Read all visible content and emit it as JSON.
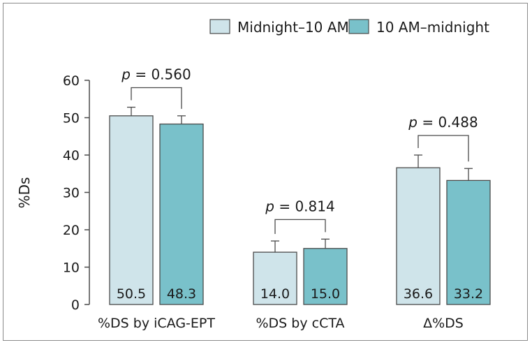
{
  "chart_data": {
    "type": "bar",
    "title": "",
    "xlabel": "",
    "ylabel": "%Ds",
    "ylim": [
      0,
      60
    ],
    "yticks": [
      0,
      10,
      20,
      30,
      40,
      50,
      60
    ],
    "grid": false,
    "legend_position": "top-right",
    "categories": [
      "%DS by iCAG-EPT",
      "%DS by cCTA",
      "Δ%DS"
    ],
    "series": [
      {
        "name": "Midnight–10 AM",
        "color": "#cfe4ea",
        "values": [
          50.5,
          14.0,
          36.6
        ],
        "labels": [
          "50.5",
          "14.0",
          "36.6"
        ],
        "errors": [
          2.3,
          3.0,
          3.4
        ]
      },
      {
        "name": "10 AM–midnight",
        "color": "#79c1ca",
        "values": [
          48.3,
          15.0,
          33.2
        ],
        "labels": [
          "48.3",
          "15.0",
          "33.2"
        ],
        "errors": [
          2.2,
          2.5,
          3.2
        ]
      }
    ],
    "pvalues": [
      {
        "prefix": "p",
        "text": " = 0.560"
      },
      {
        "prefix": "p",
        "text": " = 0.814"
      },
      {
        "prefix": "p",
        "text": " = 0.488"
      }
    ]
  }
}
